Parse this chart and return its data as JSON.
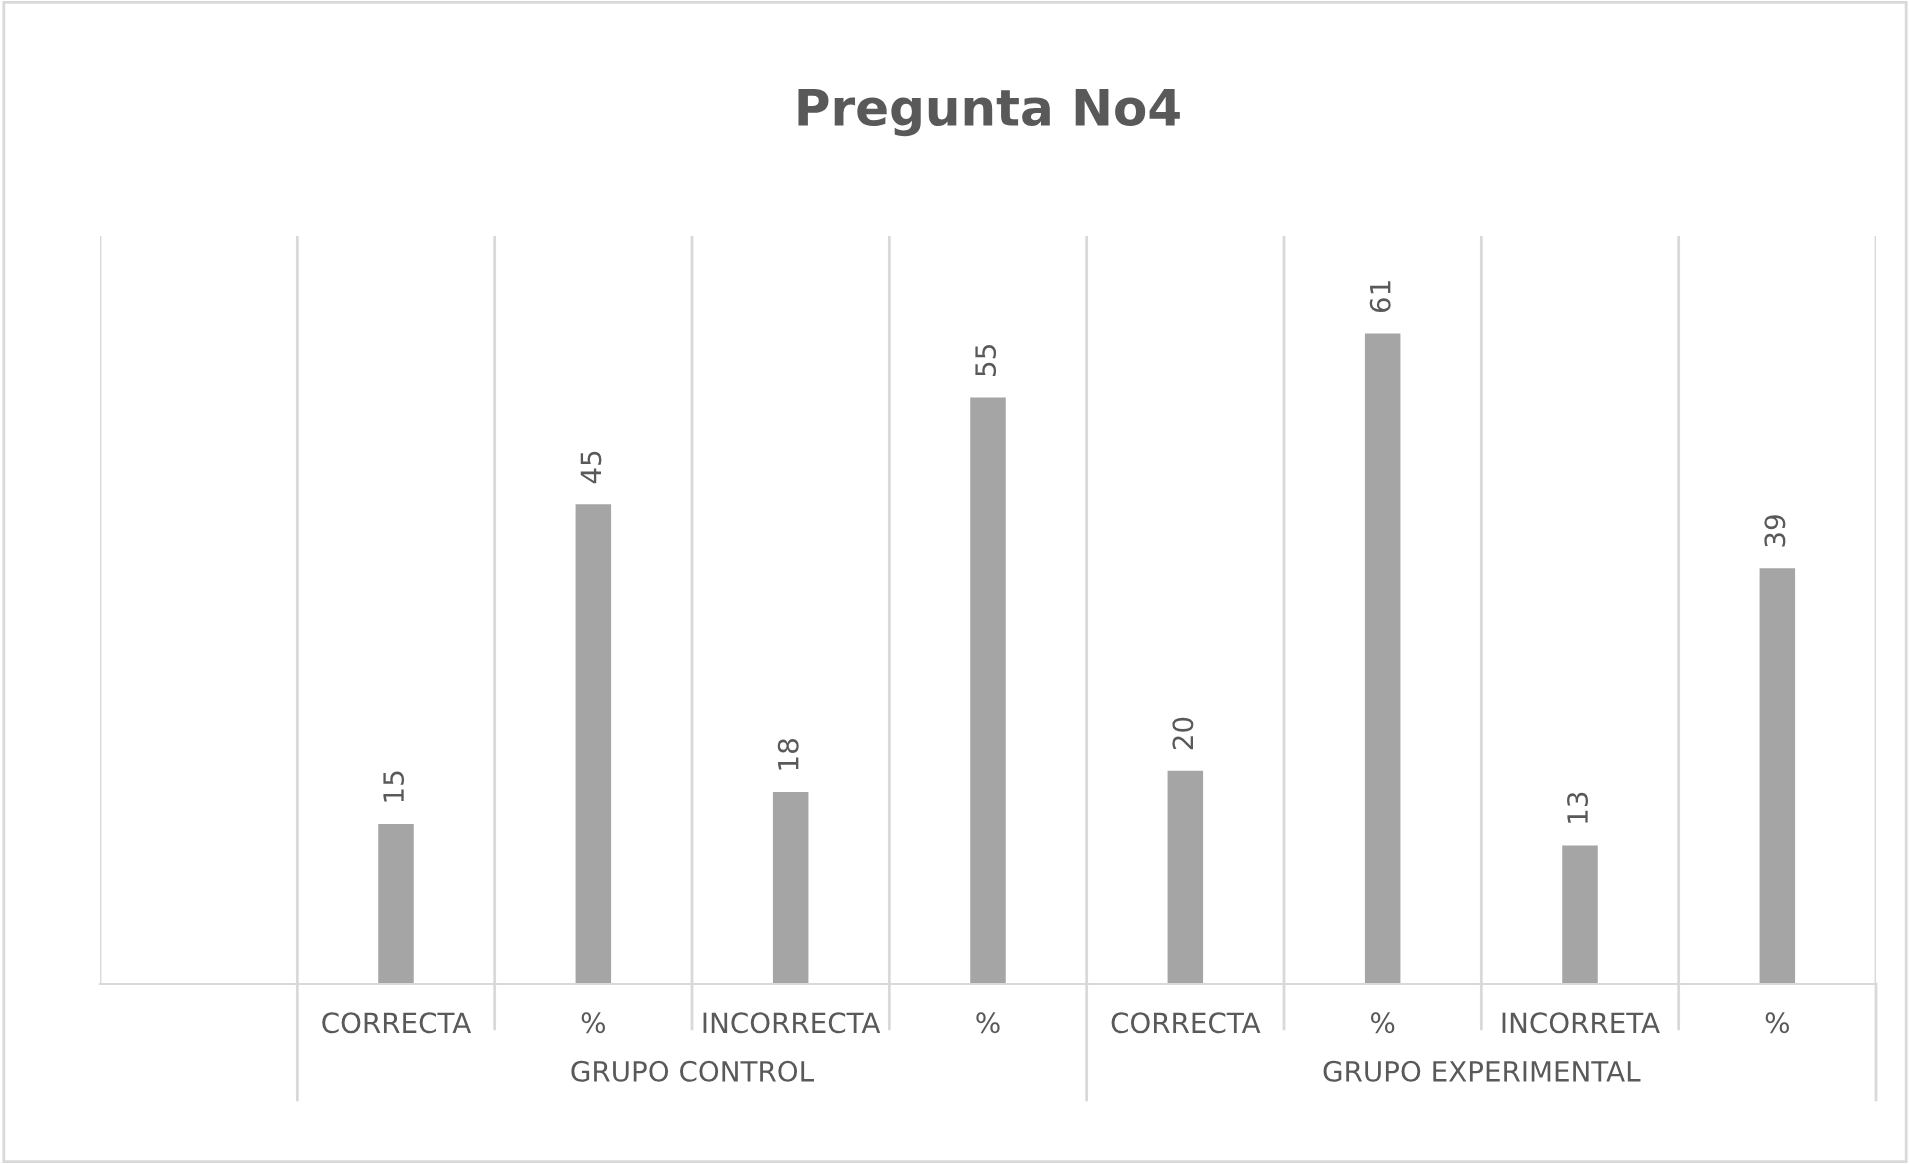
{
  "chart_data": {
    "type": "bar",
    "title": "Pregunta No4",
    "categories": [
      null,
      "CORRECTA",
      "%",
      "INCORRECTA",
      "%",
      "CORRECTA",
      "%",
      "INCORRETA",
      "%"
    ],
    "values": [
      null,
      15,
      45,
      18,
      55,
      20,
      61,
      13,
      39
    ],
    "color": "#a5a5a5",
    "data_labels": true,
    "grid": "x",
    "tick_labels": "x",
    "annotations": [
      "GRUPO CONTROL",
      "GRUPO EXPERIMENTAL"
    ]
  }
}
